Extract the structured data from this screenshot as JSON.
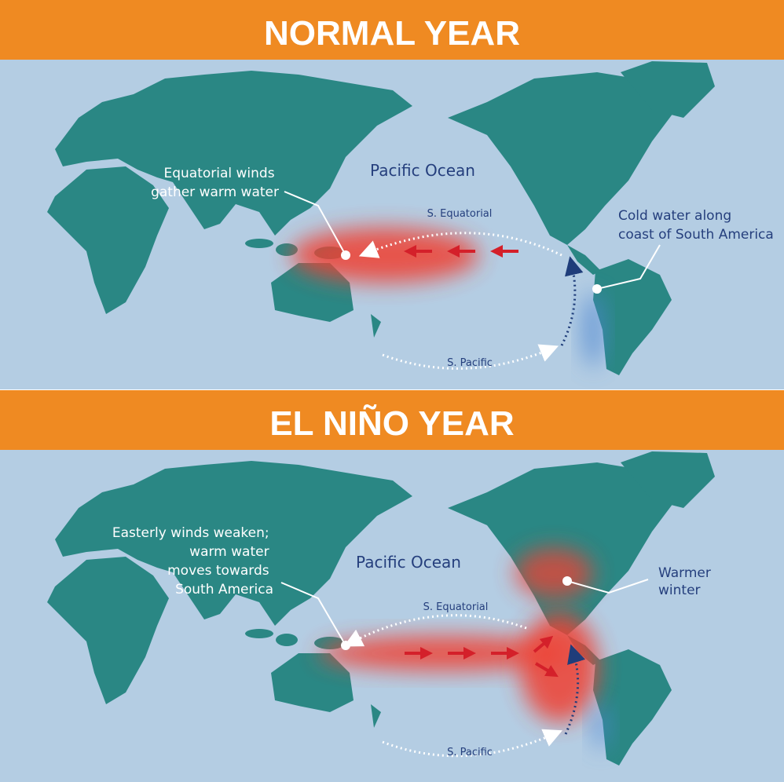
{
  "panels": [
    {
      "title": "NORMAL YEAR",
      "ocean_label": "Pacific Ocean",
      "currents": [
        "S. Equatorial",
        "S. Pacific"
      ],
      "annotations": [
        {
          "lines": [
            "Equatorial winds",
            "gather warm water"
          ]
        },
        {
          "lines": [
            "Cold water along",
            "coast of South America"
          ]
        }
      ]
    },
    {
      "title": "EL NIÑO YEAR",
      "ocean_label": "Pacific Ocean",
      "currents": [
        "S. Equatorial",
        "S. Pacific"
      ],
      "annotations": [
        {
          "lines": [
            "Easterly winds weaken;",
            "warm water",
            "moves towards",
            "South America"
          ]
        },
        {
          "lines": [
            "Warmer",
            "winter"
          ]
        }
      ]
    }
  ]
}
